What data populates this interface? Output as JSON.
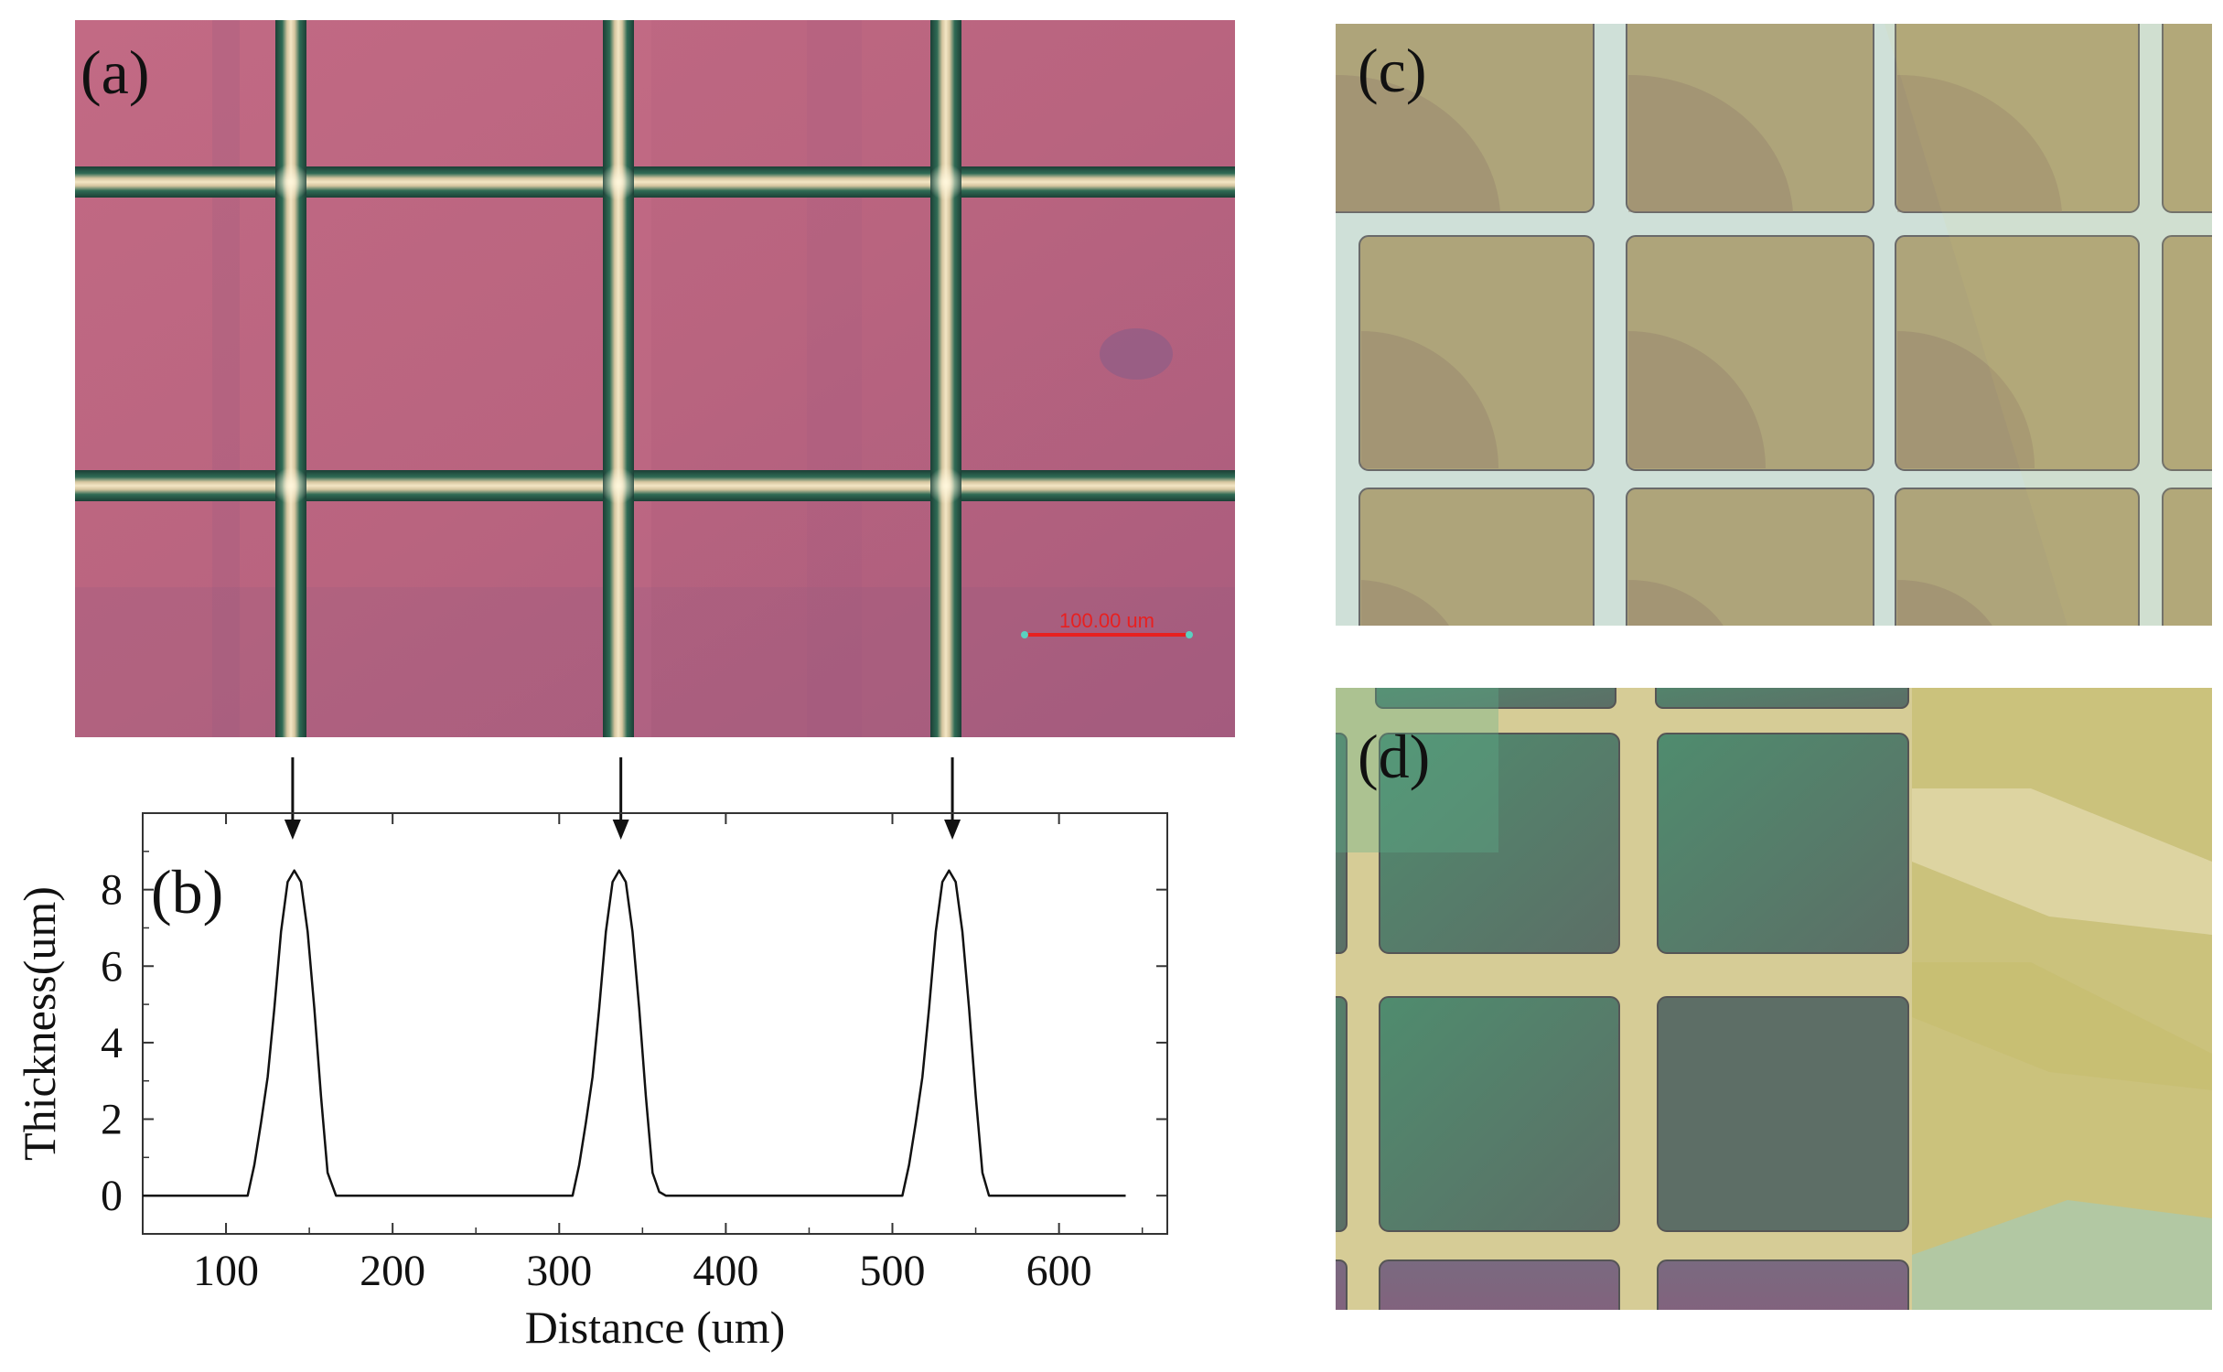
{
  "panels": {
    "a": {
      "label": "(a)",
      "scale_bar_text": "100.00 um"
    },
    "b": {
      "label": "(b)"
    },
    "c": {
      "label": "(c)"
    },
    "d": {
      "label": "(d)"
    }
  },
  "colors": {
    "panel_a_background": "#bb6580",
    "panel_a_grid_line": "#163a30",
    "scale_bar": "#e82020",
    "panel_c_background": "#aea47a",
    "panel_c_grid_line": "#cfe0d8",
    "panel_d_green": "#547d68",
    "panel_d_yellow": "#c9c07d",
    "curve": "#111111"
  },
  "chart_data": {
    "type": "line",
    "xlabel": "Distance (um)",
    "ylabel": "Thickness(um)",
    "xlim": [
      50,
      665
    ],
    "ylim": [
      -1,
      10
    ],
    "x_ticks": [
      100,
      200,
      300,
      400,
      500,
      600
    ],
    "y_ticks": [
      0,
      2,
      4,
      6,
      8
    ],
    "grid": false,
    "legend": "none",
    "annotation_arrows_at_x": [
      140,
      337,
      536
    ],
    "series": [
      {
        "x": [
          40,
          113,
          117,
          121,
          125,
          129,
          133,
          137,
          141,
          145,
          149,
          153,
          157,
          161,
          166,
          308,
          312,
          316,
          320,
          324,
          328,
          332,
          336,
          340,
          344,
          348,
          352,
          356,
          360,
          364,
          506,
          510,
          514,
          518,
          522,
          526,
          530,
          534,
          538,
          542,
          546,
          550,
          554,
          558,
          640
        ],
        "y": [
          0,
          0,
          0.8,
          1.9,
          3.1,
          4.9,
          6.9,
          8.2,
          8.5,
          8.2,
          6.9,
          4.9,
          2.6,
          0.6,
          0,
          0,
          0.8,
          1.9,
          3.1,
          4.9,
          6.9,
          8.2,
          8.5,
          8.2,
          6.9,
          4.9,
          2.6,
          0.6,
          0.1,
          0,
          0,
          0.8,
          1.9,
          3.1,
          4.9,
          6.9,
          8.2,
          8.5,
          8.2,
          6.9,
          4.9,
          2.6,
          0.6,
          0,
          0
        ]
      }
    ]
  }
}
